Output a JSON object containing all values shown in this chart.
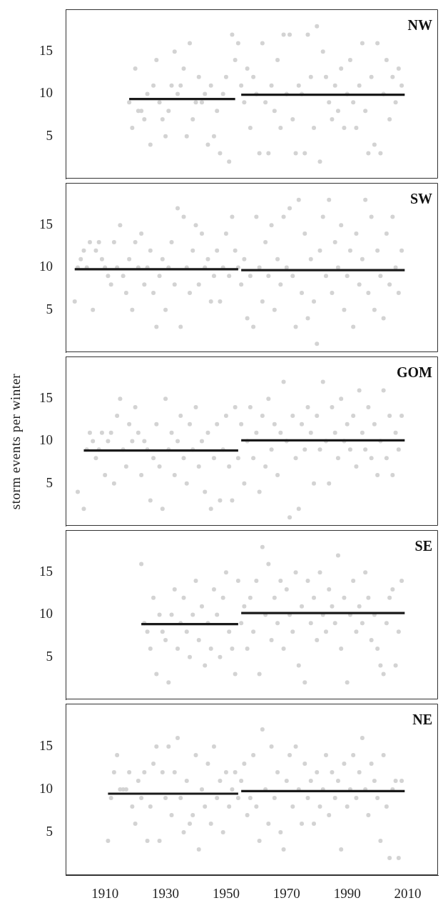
{
  "chart_data": [
    {
      "type": "scatter",
      "title": "NW",
      "xlim": [
        1897,
        2020
      ],
      "xticks": [
        1910,
        1930,
        1950,
        1970,
        1990,
        2010
      ],
      "ylim": [
        0,
        20
      ],
      "yticks": [
        5,
        10,
        15
      ],
      "tick_labels": "y",
      "grid": false,
      "legend": false,
      "series": [
        {
          "marker": "circle",
          "color": "#d3d3d3",
          "x": [
            1918,
            1919,
            1920,
            1921,
            1922,
            1923,
            1924,
            1925,
            1926,
            1927,
            1928,
            1929,
            1930,
            1931,
            1932,
            1933,
            1934,
            1935,
            1936,
            1937,
            1938,
            1939,
            1940,
            1941,
            1942,
            1943,
            1944,
            1945,
            1946,
            1947,
            1948,
            1949,
            1950,
            1951,
            1952,
            1953,
            1954,
            1955,
            1956,
            1957,
            1958,
            1959,
            1960,
            1961,
            1962,
            1963,
            1964,
            1965,
            1966,
            1967,
            1968,
            1969,
            1970,
            1971,
            1972,
            1973,
            1974,
            1975,
            1976,
            1977,
            1978,
            1979,
            1980,
            1981,
            1982,
            1983,
            1984,
            1985,
            1986,
            1987,
            1988,
            1989,
            1990,
            1991,
            1992,
            1993,
            1994,
            1995,
            1996,
            1997,
            1998,
            1999,
            2000,
            2001,
            2002,
            2003,
            2004,
            2005,
            2006,
            2007,
            2008
          ],
          "values": [
            9,
            6,
            13,
            8,
            8,
            7,
            10,
            4,
            11,
            14,
            9,
            7,
            5,
            8,
            11,
            15,
            10,
            11,
            13,
            5,
            16,
            7,
            9,
            12,
            9,
            10,
            4,
            11,
            5,
            8,
            3,
            10,
            12,
            2,
            17,
            14,
            16,
            11,
            9,
            13,
            6,
            12,
            10,
            3,
            16,
            9,
            3,
            11,
            8,
            14,
            6,
            17,
            10,
            17,
            7,
            3,
            11,
            10,
            3,
            17,
            12,
            6,
            18,
            2,
            15,
            12,
            9,
            7,
            11,
            8,
            13,
            6,
            10,
            14,
            9,
            6,
            11,
            16,
            8,
            3,
            12,
            4,
            16,
            3,
            10,
            14,
            7,
            12,
            9,
            13,
            11
          ]
        },
        {
          "type": "line",
          "marker": "none",
          "color": "#1a1a1a",
          "x": [
            1918,
            1953
          ],
          "values": [
            9.4,
            9.4
          ]
        },
        {
          "type": "line",
          "marker": "none",
          "color": "#1a1a1a",
          "x": [
            1955,
            2009
          ],
          "values": [
            9.9,
            9.9
          ]
        }
      ]
    },
    {
      "type": "scatter",
      "title": "SW",
      "xlim": [
        1897,
        2020
      ],
      "xticks": [
        1910,
        1930,
        1950,
        1970,
        1990,
        2010
      ],
      "ylim": [
        0,
        20
      ],
      "yticks": [
        5,
        10,
        15
      ],
      "tick_labels": "y",
      "grid": false,
      "legend": false,
      "series": [
        {
          "marker": "circle",
          "color": "#d3d3d3",
          "x": [
            1900,
            1901,
            1902,
            1903,
            1904,
            1905,
            1906,
            1907,
            1908,
            1909,
            1910,
            1911,
            1912,
            1913,
            1914,
            1915,
            1916,
            1917,
            1918,
            1919,
            1920,
            1921,
            1922,
            1923,
            1924,
            1925,
            1926,
            1927,
            1928,
            1929,
            1930,
            1931,
            1932,
            1933,
            1934,
            1935,
            1936,
            1937,
            1938,
            1939,
            1940,
            1941,
            1942,
            1943,
            1944,
            1945,
            1946,
            1947,
            1948,
            1949,
            1950,
            1951,
            1952,
            1953,
            1954,
            1955,
            1956,
            1957,
            1958,
            1959,
            1960,
            1961,
            1962,
            1963,
            1964,
            1965,
            1966,
            1967,
            1968,
            1969,
            1970,
            1971,
            1972,
            1973,
            1974,
            1975,
            1976,
            1977,
            1978,
            1979,
            1980,
            1981,
            1982,
            1983,
            1984,
            1985,
            1986,
            1987,
            1988,
            1989,
            1990,
            1991,
            1992,
            1993,
            1994,
            1995,
            1996,
            1997,
            1998,
            1999,
            2000,
            2001,
            2002,
            2003,
            2004,
            2005,
            2006,
            2007,
            2008
          ],
          "values": [
            6,
            10,
            11,
            12,
            10,
            13,
            5,
            12,
            13,
            11,
            10,
            9,
            8,
            13,
            10,
            15,
            9,
            7,
            11,
            5,
            13,
            10,
            14,
            8,
            10,
            12,
            7,
            3,
            9,
            11,
            5,
            10,
            13,
            8,
            17,
            3,
            16,
            10,
            7,
            12,
            15,
            8,
            14,
            10,
            11,
            6,
            9,
            12,
            6,
            10,
            14,
            9,
            16,
            12,
            10,
            8,
            11,
            4,
            9,
            3,
            16,
            10,
            6,
            13,
            9,
            15,
            5,
            11,
            8,
            16,
            10,
            17,
            9,
            3,
            18,
            7,
            14,
            4,
            11,
            6,
            1,
            12,
            16,
            9,
            18,
            7,
            13,
            10,
            15,
            5,
            9,
            12,
            3,
            14,
            8,
            11,
            18,
            7,
            16,
            5,
            12,
            9,
            4,
            14,
            8,
            16,
            10,
            7,
            12
          ]
        },
        {
          "type": "line",
          "marker": "none",
          "color": "#1a1a1a",
          "x": [
            1900,
            1954
          ],
          "values": [
            9.8,
            9.8
          ]
        },
        {
          "type": "line",
          "marker": "none",
          "color": "#1a1a1a",
          "x": [
            1955,
            2009
          ],
          "values": [
            9.7,
            9.7
          ]
        }
      ]
    },
    {
      "type": "scatter",
      "title": "GOM",
      "ylabel": "storm events per winter",
      "xlim": [
        1897,
        2020
      ],
      "xticks": [
        1910,
        1930,
        1950,
        1970,
        1990,
        2010
      ],
      "ylim": [
        0,
        20
      ],
      "yticks": [
        5,
        10,
        15
      ],
      "tick_labels": "y",
      "grid": false,
      "legend": false,
      "series": [
        {
          "marker": "circle",
          "color": "#d3d3d3",
          "x": [
            1901,
            1903,
            1904,
            1905,
            1906,
            1907,
            1908,
            1909,
            1910,
            1911,
            1912,
            1913,
            1914,
            1915,
            1916,
            1917,
            1918,
            1919,
            1920,
            1921,
            1922,
            1923,
            1924,
            1925,
            1926,
            1927,
            1928,
            1929,
            1930,
            1931,
            1932,
            1933,
            1934,
            1935,
            1936,
            1937,
            1938,
            1939,
            1940,
            1941,
            1942,
            1943,
            1944,
            1945,
            1946,
            1947,
            1948,
            1949,
            1950,
            1951,
            1952,
            1953,
            1954,
            1955,
            1956,
            1957,
            1958,
            1959,
            1960,
            1961,
            1962,
            1963,
            1964,
            1965,
            1966,
            1967,
            1968,
            1969,
            1970,
            1971,
            1972,
            1973,
            1974,
            1975,
            1976,
            1977,
            1978,
            1979,
            1980,
            1981,
            1982,
            1983,
            1984,
            1985,
            1986,
            1987,
            1988,
            1989,
            1990,
            1991,
            1992,
            1993,
            1994,
            1995,
            1996,
            1997,
            1998,
            1999,
            2000,
            2001,
            2002,
            2003,
            2004,
            2005,
            2006,
            2007,
            2008
          ],
          "values": [
            4,
            2,
            9,
            11,
            10,
            8,
            9,
            11,
            6,
            10,
            11,
            5,
            13,
            15,
            9,
            7,
            12,
            10,
            14,
            11,
            6,
            10,
            9,
            3,
            8,
            12,
            7,
            2,
            15,
            9,
            11,
            6,
            10,
            13,
            8,
            5,
            12,
            9,
            14,
            7,
            10,
            4,
            11,
            2,
            8,
            12,
            3,
            9,
            13,
            7,
            3,
            14,
            8,
            12,
            5,
            10,
            14,
            8,
            11,
            4,
            13,
            7,
            15,
            9,
            12,
            6,
            11,
            17,
            10,
            1,
            13,
            8,
            2,
            12,
            9,
            14,
            11,
            5,
            13,
            9,
            17,
            10,
            5,
            14,
            11,
            8,
            15,
            10,
            12,
            9,
            13,
            7,
            16,
            11,
            9,
            14,
            8,
            12,
            6,
            10,
            16,
            8,
            13,
            6,
            11,
            9,
            13
          ]
        },
        {
          "type": "line",
          "marker": "none",
          "color": "#1a1a1a",
          "x": [
            1903,
            1954
          ],
          "values": [
            8.9,
            8.9
          ]
        },
        {
          "type": "line",
          "marker": "none",
          "color": "#1a1a1a",
          "x": [
            1955,
            2009
          ],
          "values": [
            10.1,
            10.1
          ]
        }
      ]
    },
    {
      "type": "scatter",
      "title": "SE",
      "xlim": [
        1897,
        2020
      ],
      "xticks": [
        1910,
        1930,
        1950,
        1970,
        1990,
        2010
      ],
      "ylim": [
        0,
        20
      ],
      "yticks": [
        5,
        10,
        15
      ],
      "tick_labels": "y",
      "grid": false,
      "legend": false,
      "series": [
        {
          "marker": "circle",
          "color": "#d3d3d3",
          "x": [
            1922,
            1923,
            1924,
            1925,
            1926,
            1927,
            1928,
            1929,
            1930,
            1931,
            1932,
            1933,
            1934,
            1935,
            1936,
            1937,
            1938,
            1939,
            1940,
            1941,
            1942,
            1943,
            1944,
            1945,
            1946,
            1947,
            1948,
            1949,
            1950,
            1951,
            1952,
            1953,
            1954,
            1955,
            1956,
            1957,
            1958,
            1959,
            1960,
            1961,
            1962,
            1963,
            1964,
            1965,
            1966,
            1967,
            1968,
            1969,
            1970,
            1971,
            1972,
            1973,
            1974,
            1975,
            1976,
            1977,
            1978,
            1979,
            1980,
            1981,
            1982,
            1983,
            1984,
            1985,
            1986,
            1987,
            1988,
            1989,
            1990,
            1991,
            1992,
            1993,
            1994,
            1995,
            1996,
            1997,
            1998,
            1999,
            2000,
            2001,
            2002,
            2003,
            2004,
            2005,
            2006,
            2007,
            2008
          ],
          "values": [
            16,
            9,
            8,
            6,
            12,
            3,
            10,
            8,
            7,
            2,
            10,
            13,
            6,
            9,
            12,
            8,
            5,
            10,
            14,
            7,
            11,
            4,
            9,
            6,
            13,
            10,
            5,
            12,
            15,
            8,
            6,
            3,
            14,
            9,
            11,
            6,
            12,
            8,
            14,
            3,
            18,
            10,
            16,
            7,
            12,
            9,
            14,
            6,
            13,
            10,
            8,
            15,
            4,
            11,
            2,
            14,
            9,
            12,
            7,
            15,
            10,
            8,
            13,
            11,
            9,
            17,
            6,
            12,
            2,
            10,
            14,
            8,
            11,
            9,
            15,
            12,
            7,
            10,
            6,
            4,
            3,
            9,
            12,
            13,
            4,
            8,
            14
          ]
        },
        {
          "type": "line",
          "marker": "none",
          "color": "#1a1a1a",
          "x": [
            1922,
            1954
          ],
          "values": [
            8.9,
            8.9
          ]
        },
        {
          "type": "line",
          "marker": "none",
          "color": "#1a1a1a",
          "x": [
            1955,
            2009
          ],
          "values": [
            10.2,
            10.2
          ]
        }
      ]
    },
    {
      "type": "scatter",
      "title": "NE",
      "xlim": [
        1897,
        2020
      ],
      "xticks": [
        1910,
        1930,
        1950,
        1970,
        1990,
        2010
      ],
      "ylim": [
        0,
        20
      ],
      "yticks": [
        5,
        10,
        15
      ],
      "grid": false,
      "legend": false,
      "series": [
        {
          "marker": "circle",
          "color": "#d3d3d3",
          "x": [
            1911,
            1912,
            1913,
            1914,
            1915,
            1916,
            1917,
            1918,
            1919,
            1920,
            1921,
            1922,
            1923,
            1924,
            1925,
            1926,
            1927,
            1928,
            1929,
            1930,
            1931,
            1932,
            1933,
            1934,
            1935,
            1936,
            1937,
            1938,
            1939,
            1940,
            1941,
            1942,
            1943,
            1944,
            1945,
            1946,
            1947,
            1948,
            1949,
            1950,
            1951,
            1952,
            1953,
            1954,
            1955,
            1956,
            1957,
            1958,
            1959,
            1960,
            1961,
            1962,
            1963,
            1964,
            1965,
            1966,
            1967,
            1968,
            1969,
            1970,
            1971,
            1972,
            1973,
            1974,
            1975,
            1976,
            1977,
            1978,
            1979,
            1980,
            1981,
            1982,
            1983,
            1984,
            1985,
            1986,
            1987,
            1988,
            1989,
            1990,
            1991,
            1992,
            1993,
            1994,
            1995,
            1996,
            1997,
            1998,
            1999,
            2000,
            2001,
            2002,
            2003,
            2004,
            2005,
            2006,
            2007,
            2008
          ],
          "values": [
            4,
            9,
            12,
            14,
            10,
            10,
            10,
            12,
            8,
            6,
            11,
            9,
            12,
            4,
            8,
            13,
            15,
            4,
            12,
            9,
            15,
            7,
            12,
            16,
            9,
            5,
            11,
            6,
            7,
            14,
            3,
            10,
            8,
            13,
            6,
            15,
            9,
            11,
            5,
            12,
            8,
            10,
            12,
            9,
            11,
            13,
            7,
            9,
            14,
            8,
            4,
            17,
            10,
            6,
            15,
            9,
            12,
            5,
            3,
            11,
            14,
            8,
            15,
            10,
            6,
            13,
            9,
            11,
            6,
            12,
            8,
            10,
            14,
            7,
            12,
            9,
            11,
            3,
            13,
            8,
            10,
            14,
            9,
            12,
            16,
            10,
            7,
            13,
            11,
            9,
            4,
            14,
            8,
            2,
            10,
            11,
            2,
            11
          ]
        },
        {
          "type": "line",
          "marker": "none",
          "color": "#1a1a1a",
          "x": [
            1911,
            1954
          ],
          "values": [
            9.5,
            9.5
          ]
        },
        {
          "type": "line",
          "marker": "none",
          "color": "#1a1a1a",
          "x": [
            1955,
            2009
          ],
          "values": [
            9.8,
            9.8
          ]
        }
      ]
    }
  ]
}
